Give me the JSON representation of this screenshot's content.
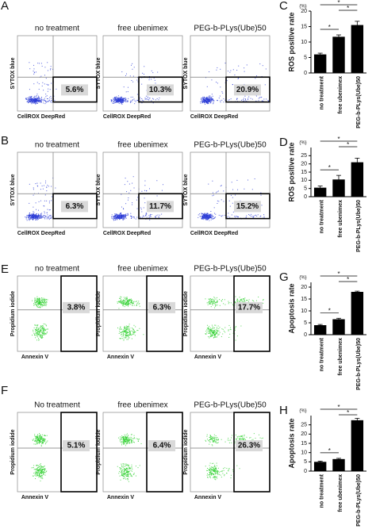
{
  "flow_rows": [
    {
      "label": "A",
      "titles": [
        "no treatment",
        "free ubenimex",
        "PEG-b-PLys(Ube)50"
      ],
      "y_axis": "SYTOX blue",
      "x_axis": "CellROX DeepRed",
      "percentages": [
        "5.6%",
        "10.3%",
        "20.9%"
      ],
      "color": "#2a3bd6"
    },
    {
      "label": "B",
      "titles": [
        "no treatment",
        "free ubenimex",
        "PEG-b-PLys(Ube)50"
      ],
      "y_axis": "SYTOX blue",
      "x_axis": "CellROX DeepRed",
      "percentages": [
        "6.3%",
        "11.7%",
        "15.2%"
      ],
      "color": "#2a3bd6"
    },
    {
      "label": "E",
      "titles": [
        "no treatment",
        "free ubenimex",
        "PEG-b-PLys(Ube)50"
      ],
      "y_axis": "Propidium iodide",
      "x_axis": "Annexin V",
      "percentages": [
        "3.8%",
        "6.3%",
        "17.7%"
      ],
      "color": "#2ed12e"
    },
    {
      "label": "F",
      "titles": [
        "No treatment",
        "free ubenimex",
        "PEG-b-PLys(Ube)50"
      ],
      "y_axis": "Propidium iodide",
      "x_axis": "Annexin V",
      "percentages": [
        "5.1%",
        "6.4%",
        "26.3%"
      ],
      "color": "#2ed12e"
    }
  ],
  "chart_data": [
    {
      "type": "bar",
      "panel_label": "C",
      "unit": "(%)",
      "ylabel": "ROS positive rate",
      "categories": [
        "no treatment",
        "free ubenimex",
        "PEG-b-PLys(Ube)50"
      ],
      "values": [
        6,
        11.7,
        15.5
      ],
      "errors": [
        0.4,
        0.6,
        1.2
      ],
      "ylim": [
        0,
        20
      ],
      "yticks": [
        0,
        5,
        10,
        15,
        20
      ],
      "color": "#000000",
      "significance": [
        "*",
        "*",
        "*"
      ]
    },
    {
      "type": "bar",
      "panel_label": "D",
      "unit": "(%)",
      "ylabel": "ROS positive rate",
      "categories": [
        "no treatment",
        "free ubenimex",
        "PEG-b-PLys(Ube)50"
      ],
      "values": [
        5.5,
        10.5,
        21
      ],
      "errors": [
        1,
        2.5,
        2.5
      ],
      "ylim": [
        0,
        30
      ],
      "yticks": [
        0,
        5,
        10,
        15,
        20,
        25
      ],
      "color": "#000000",
      "significance": [
        "*",
        "*",
        "*"
      ]
    },
    {
      "type": "bar",
      "panel_label": "G",
      "unit": "(%)",
      "ylabel": "Apoptosis rate",
      "categories": [
        "no treatment",
        "free ubenimex",
        "PEG-b-PLys(Ube)50"
      ],
      "values": [
        4,
        6.5,
        18
      ],
      "errors": [
        0.3,
        0.4,
        0.3
      ],
      "ylim": [
        0,
        22
      ],
      "yticks": [
        0,
        5,
        10,
        15,
        20
      ],
      "color": "#000000",
      "significance": [
        "*",
        "*",
        "*"
      ]
    },
    {
      "type": "bar",
      "panel_label": "H",
      "unit": "(%)",
      "ylabel": "Apoptosis rate",
      "categories": [
        "no treatment",
        "free ubenimex",
        "PEG-b-PLys(Ube)50"
      ],
      "values": [
        5,
        6.5,
        27.5
      ],
      "errors": [
        0.4,
        0.4,
        1
      ],
      "ylim": [
        0,
        30
      ],
      "yticks": [
        0,
        5,
        10,
        15,
        20,
        25
      ],
      "color": "#000000",
      "significance": [
        "*",
        "*",
        "*"
      ]
    }
  ]
}
